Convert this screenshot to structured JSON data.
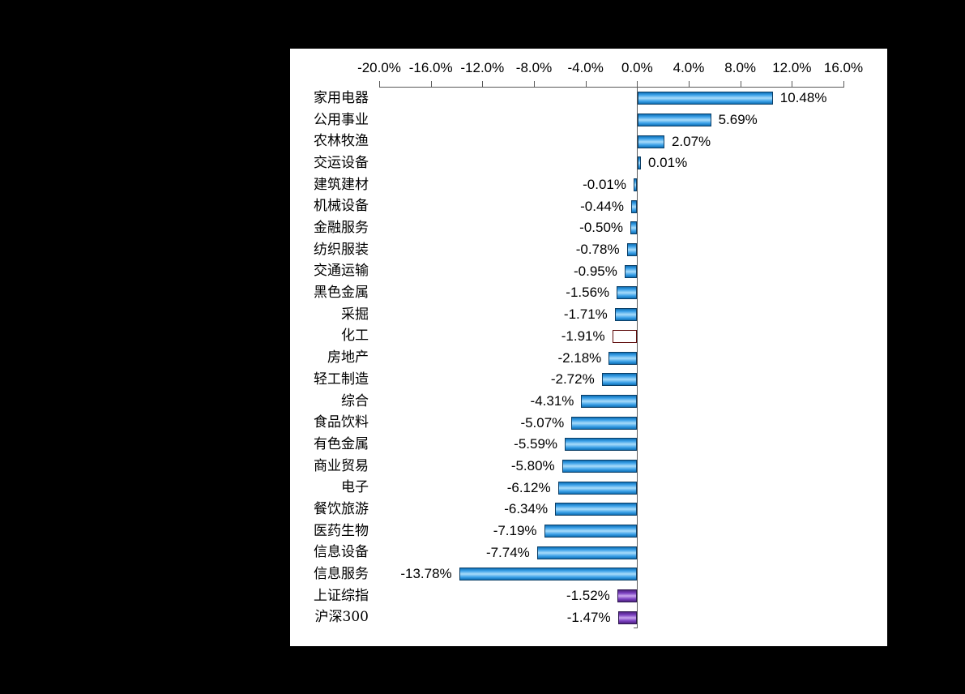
{
  "page": {
    "background": "#000000",
    "panel_background": "#ffffff"
  },
  "chart_data": {
    "type": "bar",
    "orientation": "horizontal",
    "title": "",
    "legend": false,
    "grid": false,
    "value_axis": {
      "position": "top",
      "min": -20,
      "max": 16,
      "step": 4,
      "tick_labels": [
        "-20.0%",
        "-16.0%",
        "-12.0%",
        "-8.0%",
        "-4.0%",
        "0.0%",
        "4.0%",
        "8.0%",
        "12.0%",
        "16.0%"
      ]
    },
    "categories": [
      "家用电器",
      "公用事业",
      "农林牧渔",
      "交运设备",
      "建筑建材",
      "机械设备",
      "金融服务",
      "纺织服装",
      "交通运输",
      "黑色金属",
      "采掘",
      "化工",
      "房地产",
      "轻工制造",
      "综合",
      "食品饮料",
      "有色金属",
      "商业贸易",
      "电子",
      "餐饮旅游",
      "医药生物",
      "信息设备",
      "信息服务",
      "上证综指",
      "沪深300"
    ],
    "values": [
      10.48,
      5.69,
      2.07,
      0.01,
      -0.01,
      -0.44,
      -0.5,
      -0.78,
      -0.95,
      -1.56,
      -1.71,
      -1.91,
      -2.18,
      -2.72,
      -4.31,
      -5.07,
      -5.59,
      -5.8,
      -6.12,
      -6.34,
      -7.19,
      -7.74,
      -13.78,
      -1.52,
      -1.47
    ],
    "data_labels": [
      "10.48%",
      "5.69%",
      "2.07%",
      "0.01%",
      "-0.01%",
      "-0.44%",
      "-0.50%",
      "-0.78%",
      "-0.95%",
      "-1.56%",
      "-1.71%",
      "-1.91%",
      "-2.18%",
      "-2.72%",
      "-4.31%",
      "-5.07%",
      "-5.59%",
      "-5.80%",
      "-6.12%",
      "-6.34%",
      "-7.19%",
      "-7.74%",
      "-13.78%",
      "-1.52%",
      "-1.47%"
    ],
    "bar_colors": [
      "blue",
      "blue",
      "blue",
      "blue",
      "blue",
      "blue",
      "blue",
      "blue",
      "blue",
      "blue",
      "blue",
      "red",
      "blue",
      "blue",
      "blue",
      "blue",
      "blue",
      "blue",
      "blue",
      "blue",
      "blue",
      "blue",
      "blue",
      "purple",
      "purple"
    ],
    "palette": {
      "blue": "#1787d8",
      "red": "#cf1d1d",
      "purple": "#7433a6",
      "axis": "#595959",
      "label_text": "#000000"
    }
  }
}
